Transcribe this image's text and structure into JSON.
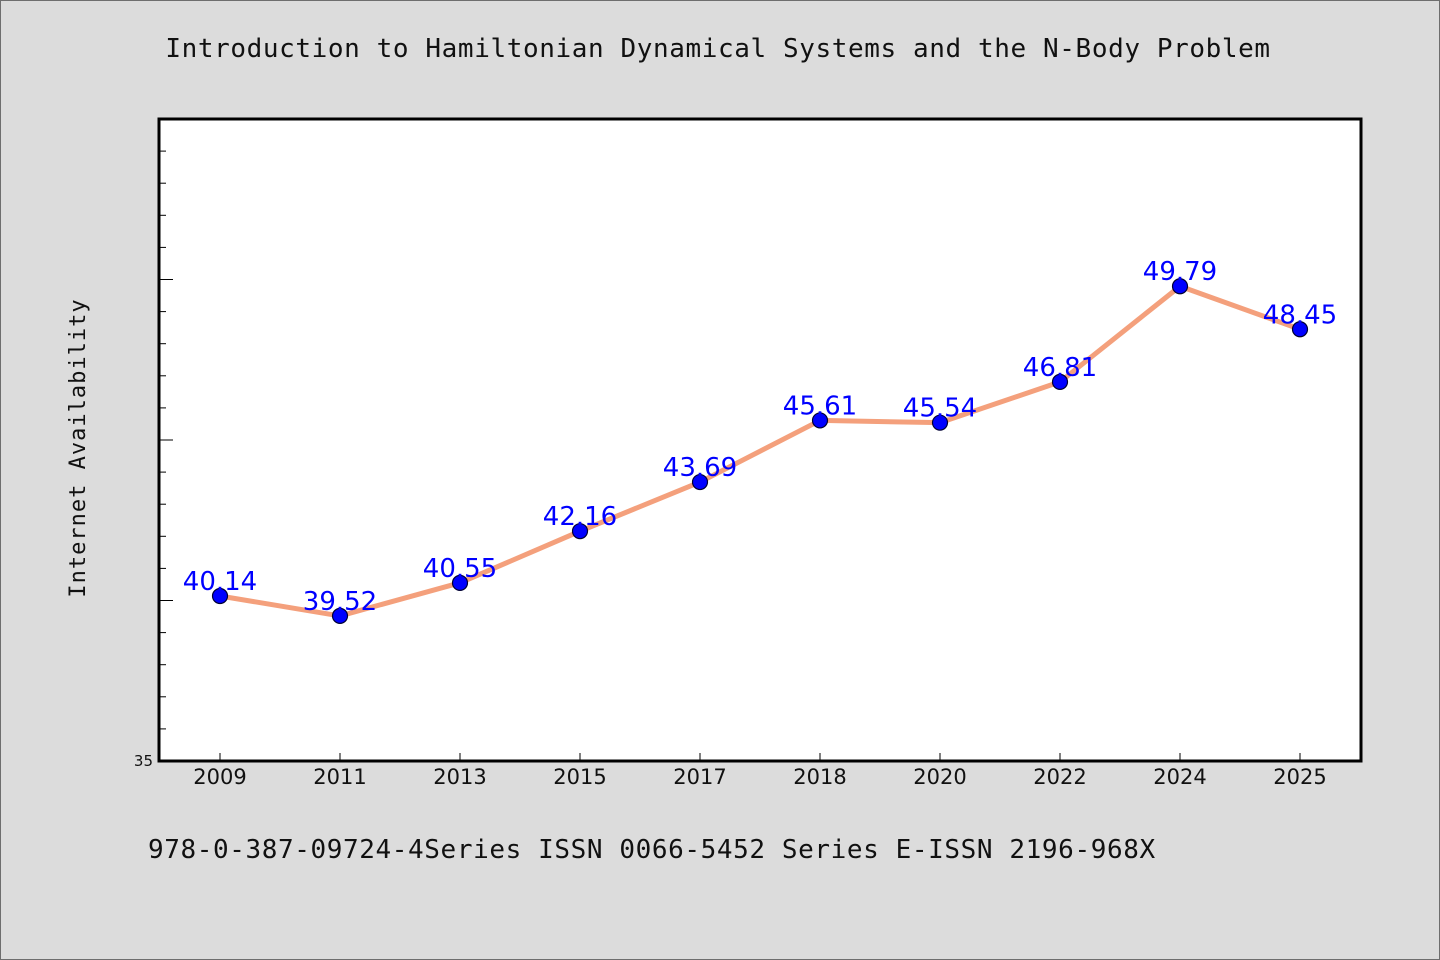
{
  "title": "Introduction to Hamiltonian Dynamical Systems and the N-Body Problem",
  "footer": "978-0-387-09724-4Series ISSN 0066-5452 Series E-ISSN 2196-968X",
  "colors": {
    "background": "#dcdcdc",
    "plot_background": "#ffffff",
    "line": "#f4a07c",
    "marker": "#0000ff",
    "data_label": "#0000ff"
  },
  "chart_data": {
    "type": "line",
    "title": "Introduction to Hamiltonian Dynamical Systems and the N-Body Problem",
    "xlabel": "",
    "ylabel": "Internet Availability",
    "categories": [
      "2009",
      "2011",
      "2013",
      "2015",
      "2017",
      "2018",
      "2020",
      "2022",
      "2024",
      "2025"
    ],
    "series": [
      {
        "values": [
          40.14,
          39.52,
          40.55,
          42.16,
          43.69,
          45.61,
          45.54,
          46.81,
          49.79,
          48.45
        ],
        "data_labels": [
          "40.14",
          "39.52",
          "40.55",
          "42.16",
          "43.69",
          "45.61",
          "45.54",
          "46.81",
          "49.79",
          "48.45"
        ]
      }
    ],
    "ylim": [
      35,
      55
    ],
    "y_tick_labels": [
      "35"
    ],
    "y_major_step": 5,
    "y_minor_step": 1,
    "grid": false,
    "legend": "none"
  }
}
